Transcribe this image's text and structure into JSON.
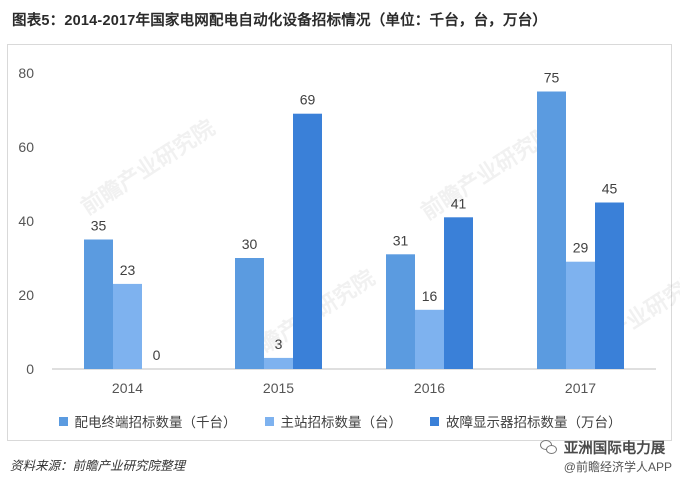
{
  "title": "图表5：2014-2017年国家电网配电自动化设备招标情况（单位：千台，台，万台）",
  "chart_data": {
    "type": "bar",
    "categories": [
      "2014",
      "2015",
      "2016",
      "2017"
    ],
    "series": [
      {
        "name": "配电终端招标数量（千台）",
        "values": [
          35,
          30,
          31,
          75
        ],
        "color": "#5b9be0"
      },
      {
        "name": "主站招标数量（台）",
        "values": [
          23,
          3,
          16,
          29
        ],
        "color": "#7eb2ef"
      },
      {
        "name": "故障显示器招标数量（万台）",
        "values": [
          0,
          69,
          41,
          45
        ],
        "color": "#3a80d8"
      }
    ],
    "ylim": [
      0,
      80
    ],
    "yticks": [
      0,
      20,
      40,
      60,
      80
    ],
    "grid": false,
    "legend_position": "bottom"
  },
  "source": "资料来源：前瞻产业研究院整理",
  "watermark_text": "前瞻产业研究院",
  "badge": {
    "name": "亚洲国际电力展",
    "sub": "@前瞻经济学人APP"
  }
}
